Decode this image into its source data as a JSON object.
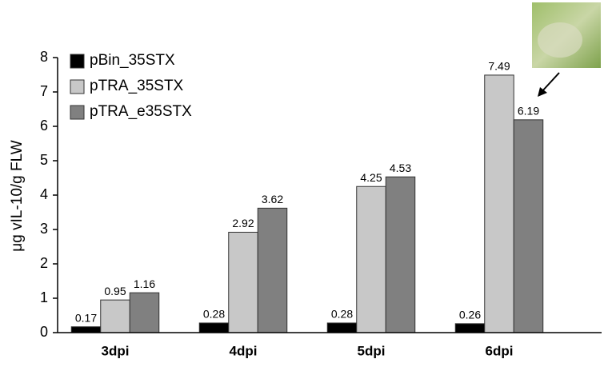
{
  "chart_data": {
    "type": "bar",
    "y_label": "μg vIL-10/g FLW",
    "categories": [
      "3dpi",
      "4dpi",
      "5dpi",
      "6dpi"
    ],
    "series": [
      {
        "name": "pBin_35STX",
        "color": "#000000",
        "values": [
          0.17,
          0.28,
          0.28,
          0.26
        ]
      },
      {
        "name": "pTRA_35STX",
        "color": "#c8c8c8",
        "values": [
          0.95,
          2.92,
          4.25,
          7.49
        ]
      },
      {
        "name": "pTRA_e35STX",
        "color": "#808080",
        "values": [
          1.16,
          3.62,
          4.53,
          6.19
        ]
      }
    ],
    "ylim": [
      0,
      8
    ],
    "yticks": [
      0,
      1,
      2,
      3,
      4,
      5,
      6,
      7,
      8
    ],
    "grid": false,
    "legend": "top-left"
  }
}
